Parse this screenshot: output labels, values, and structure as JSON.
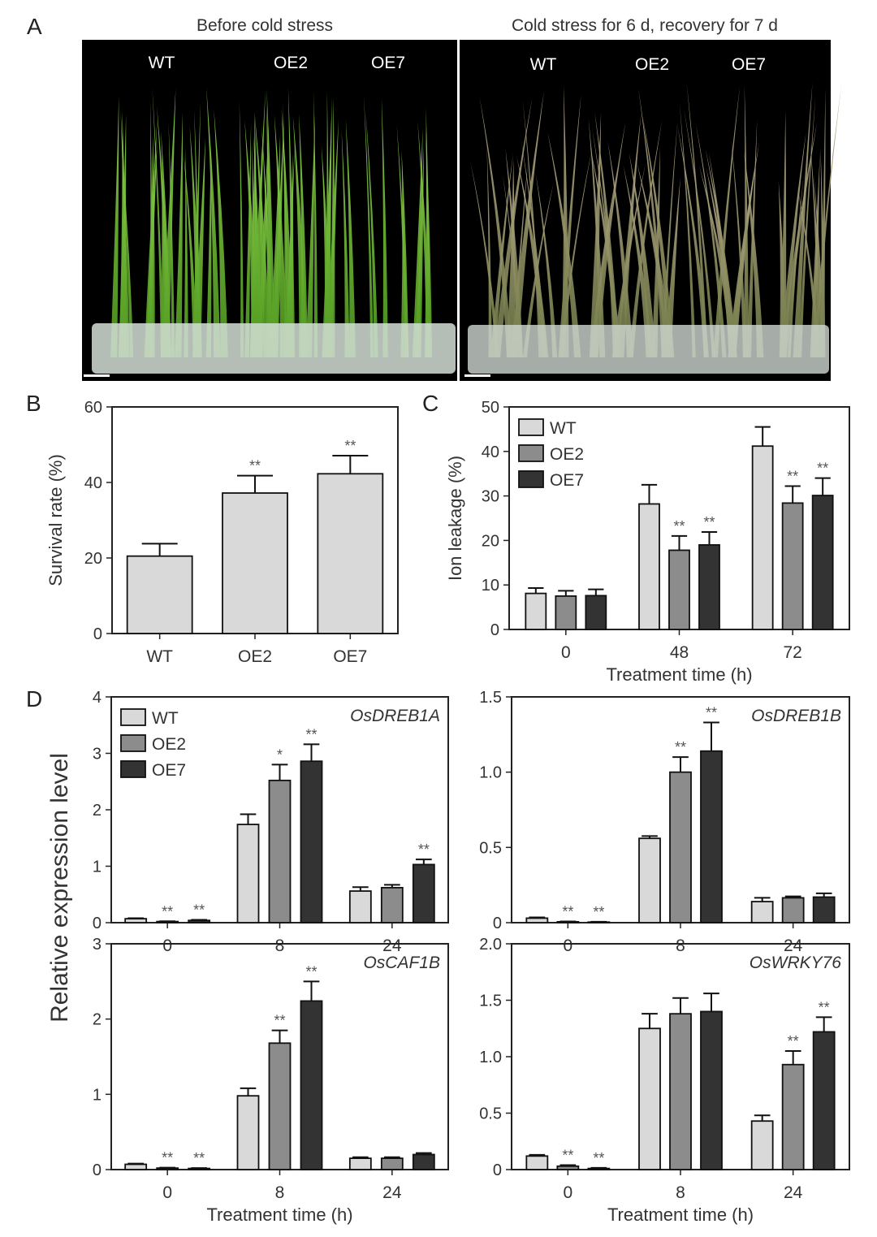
{
  "colors": {
    "WT": "#d9d9d9",
    "OE2": "#8c8c8c",
    "OE7": "#333333"
  },
  "panel_A": {
    "letter": "A",
    "photos": [
      {
        "title": "Before cold stress",
        "labels": [
          "WT",
          "OE2",
          "OE7"
        ]
      },
      {
        "title": "Cold stress for 6 d, recovery for 7 d",
        "labels": [
          "WT",
          "OE2",
          "OE7"
        ]
      }
    ]
  },
  "chart_data": [
    {
      "id": "B",
      "letter": "B",
      "type": "bar",
      "categories": [
        "WT",
        "OE2",
        "OE7"
      ],
      "values": [
        20.5,
        37.2,
        42.3
      ],
      "errors": [
        3.3,
        4.6,
        4.8
      ],
      "significance": [
        "",
        "**",
        "**"
      ],
      "ylabel": "Survival rate (%)",
      "xlabel": "",
      "ylim": [
        0,
        60
      ],
      "yticks": [
        0,
        20,
        40,
        60
      ]
    },
    {
      "id": "C",
      "letter": "C",
      "type": "bar",
      "categories": [
        "0",
        "48",
        "72"
      ],
      "series": [
        {
          "name": "WT",
          "values": [
            8.1,
            28.2,
            41.2
          ],
          "errors": [
            1.2,
            4.3,
            4.3
          ],
          "significance": [
            "",
            "",
            ""
          ]
        },
        {
          "name": "OE2",
          "values": [
            7.5,
            17.8,
            28.4
          ],
          "errors": [
            1.2,
            3.2,
            3.8
          ],
          "significance": [
            "",
            "**",
            "**"
          ]
        },
        {
          "name": "OE7",
          "values": [
            7.6,
            19.0,
            30.1
          ],
          "errors": [
            1.4,
            2.9,
            3.9
          ],
          "significance": [
            "",
            "**",
            "**"
          ]
        }
      ],
      "ylabel": "Ion leakage (%)",
      "xlabel": "Treatment time (h)",
      "ylim": [
        0,
        50
      ],
      "yticks": [
        0,
        10,
        20,
        30,
        40,
        50
      ],
      "legend": "top-left"
    },
    {
      "id": "D1",
      "letter": "D",
      "type": "bar",
      "gene": "OsDREB1A",
      "categories": [
        "0",
        "8",
        "24"
      ],
      "series": [
        {
          "name": "WT",
          "values": [
            0.07,
            1.74,
            0.56
          ],
          "errors": [
            0.01,
            0.18,
            0.07
          ],
          "significance": [
            "",
            "",
            ""
          ]
        },
        {
          "name": "OE2",
          "values": [
            0.02,
            2.52,
            0.62
          ],
          "errors": [
            0.005,
            0.28,
            0.05
          ],
          "significance": [
            "**",
            "*",
            ""
          ]
        },
        {
          "name": "OE7",
          "values": [
            0.04,
            2.86,
            1.03
          ],
          "errors": [
            0.01,
            0.3,
            0.09
          ],
          "significance": [
            "**",
            "**",
            "**"
          ]
        }
      ],
      "ylim": [
        0,
        4
      ],
      "yticks": [
        "0",
        "1",
        "2",
        "3",
        "4"
      ],
      "legend": "top-left"
    },
    {
      "id": "D2",
      "type": "bar",
      "gene": "OsDREB1B",
      "categories": [
        "0",
        "8",
        "24"
      ],
      "series": [
        {
          "name": "WT",
          "values": [
            0.03,
            0.56,
            0.14
          ],
          "errors": [
            0.005,
            0.015,
            0.025
          ],
          "significance": [
            "",
            "",
            ""
          ]
        },
        {
          "name": "OE2",
          "values": [
            0.006,
            1.0,
            0.165
          ],
          "errors": [
            0.002,
            0.1,
            0.01
          ],
          "significance": [
            "**",
            "**",
            ""
          ]
        },
        {
          "name": "OE7",
          "values": [
            0.004,
            1.14,
            0.17
          ],
          "errors": [
            0.002,
            0.19,
            0.025
          ],
          "significance": [
            "**",
            "**",
            ""
          ]
        }
      ],
      "ylim": [
        0,
        1.5
      ],
      "yticks": [
        "0",
        "0.5",
        "1.0",
        "1.5"
      ]
    },
    {
      "id": "D3",
      "type": "bar",
      "gene": "OsCAF1B",
      "categories": [
        "0",
        "8",
        "24"
      ],
      "series": [
        {
          "name": "WT",
          "values": [
            0.07,
            0.98,
            0.15
          ],
          "errors": [
            0.01,
            0.1,
            0.015
          ],
          "significance": [
            "",
            "",
            ""
          ]
        },
        {
          "name": "OE2",
          "values": [
            0.02,
            1.68,
            0.15
          ],
          "errors": [
            0.005,
            0.17,
            0.015
          ],
          "significance": [
            "**",
            "**",
            ""
          ]
        },
        {
          "name": "OE7",
          "values": [
            0.015,
            2.24,
            0.2
          ],
          "errors": [
            0.005,
            0.26,
            0.02
          ],
          "significance": [
            "**",
            "**",
            ""
          ]
        }
      ],
      "ylim": [
        0,
        3
      ],
      "yticks": [
        "0",
        "1",
        "2",
        "3"
      ],
      "xlabel": "Treatment time (h)"
    },
    {
      "id": "D4",
      "type": "bar",
      "gene": "OsWRKY76",
      "categories": [
        "0",
        "8",
        "24"
      ],
      "series": [
        {
          "name": "WT",
          "values": [
            0.12,
            1.25,
            0.43
          ],
          "errors": [
            0.01,
            0.13,
            0.05
          ],
          "significance": [
            "",
            "",
            ""
          ]
        },
        {
          "name": "OE2",
          "values": [
            0.03,
            1.38,
            0.93
          ],
          "errors": [
            0.01,
            0.14,
            0.12
          ],
          "significance": [
            "**",
            "",
            "**"
          ]
        },
        {
          "name": "OE7",
          "values": [
            0.01,
            1.4,
            1.22
          ],
          "errors": [
            0.005,
            0.16,
            0.13
          ],
          "significance": [
            "**",
            "",
            "**"
          ]
        }
      ],
      "ylim": [
        0,
        2.0
      ],
      "yticks": [
        "0",
        "0.5",
        "1.0",
        "1.5",
        "2.0"
      ],
      "xlabel": "Treatment time (h)"
    }
  ],
  "shared_ylabel_D": "Relative expression level"
}
